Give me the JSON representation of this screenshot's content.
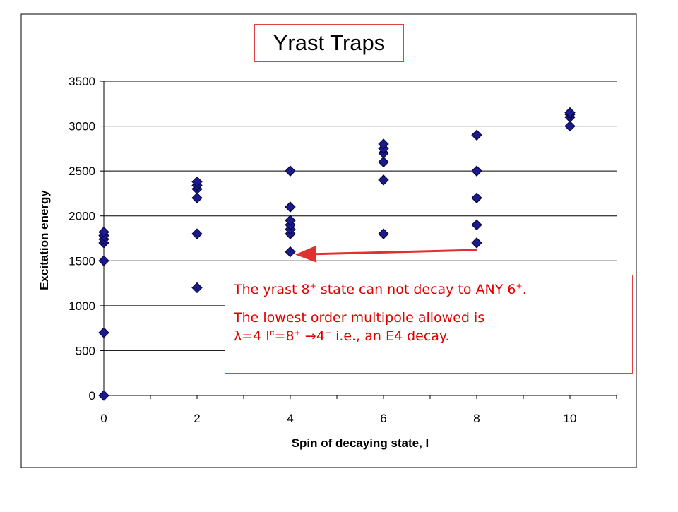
{
  "chart_data": {
    "type": "scatter",
    "title": "Yrast Traps",
    "xlabel": "Spin of decaying state, I",
    "ylabel": "Excitation energy",
    "xlim": [
      0,
      11
    ],
    "ylim": [
      0,
      3500
    ],
    "x_ticks": [
      0,
      2,
      4,
      6,
      8,
      10
    ],
    "y_ticks": [
      0,
      500,
      1000,
      1500,
      2000,
      2500,
      3000,
      3500
    ],
    "grid": "horizontal",
    "marker": "diamond",
    "marker_color": "#1a1a8c",
    "series": [
      {
        "points": [
          [
            0,
            0
          ],
          [
            0,
            700
          ],
          [
            0,
            1500
          ],
          [
            0,
            1700
          ],
          [
            0,
            1740
          ],
          [
            0,
            1780
          ],
          [
            0,
            1820
          ],
          [
            2,
            1200
          ],
          [
            2,
            1800
          ],
          [
            2,
            2200
          ],
          [
            2,
            2300
          ],
          [
            2,
            2340
          ],
          [
            2,
            2380
          ],
          [
            4,
            1600
          ],
          [
            4,
            1800
          ],
          [
            4,
            1850
          ],
          [
            4,
            1900
          ],
          [
            4,
            1950
          ],
          [
            4,
            2100
          ],
          [
            4,
            2500
          ],
          [
            6,
            1800
          ],
          [
            6,
            2400
          ],
          [
            6,
            2600
          ],
          [
            6,
            2700
          ],
          [
            6,
            2750
          ],
          [
            6,
            2800
          ],
          [
            8,
            1700
          ],
          [
            8,
            1900
          ],
          [
            8,
            2200
          ],
          [
            8,
            2500
          ],
          [
            8,
            2900
          ],
          [
            10,
            3000
          ],
          [
            10,
            3100
          ],
          [
            10,
            3130
          ],
          [
            10,
            3150
          ]
        ]
      }
    ],
    "annotation_arrow": {
      "from": [
        8,
        1620
      ],
      "to": [
        4,
        1570
      ],
      "color": "#e03030"
    }
  },
  "note": {
    "line1_pre": "The yrast 8",
    "line1_sup1": "+",
    "line1_mid": " state can not decay to ANY 6",
    "line1_sup2": "+",
    "line1_post": ".",
    "line2": "The lowest order multipole allowed is",
    "line3_lambda": "λ",
    "line3_a": "=4 I",
    "line3_pi": "π",
    "line3_b": "=8",
    "line3_sup1": "+",
    "line3_arrow": " →4",
    "line3_sup2": "+",
    "line3_c": " i.e., an E4 decay."
  },
  "colors": {
    "marker": "#1a1a8c",
    "arrow": "#e03030",
    "note_text": "#e00000",
    "box_border": "#e04040"
  }
}
